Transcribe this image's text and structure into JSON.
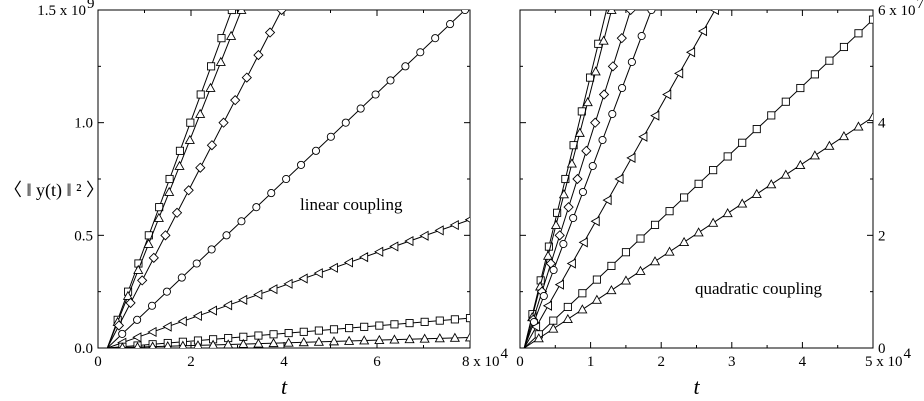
{
  "chart_data": [
    {
      "type": "line",
      "panel": "left",
      "xlabel": "t",
      "ylabel": "〈 ‖ y(t) ‖ ² 〉",
      "xlim": [
        0,
        80000
      ],
      "ylim": [
        0,
        1500000000
      ],
      "x_ticks": [
        0,
        20000,
        40000,
        60000,
        80000
      ],
      "x_tick_labels": [
        "0",
        "2",
        "4",
        "6",
        "8 x 10"
      ],
      "x_tick_exponent": "4",
      "y_ticks": [
        0,
        500000000,
        1000000000,
        1500000000
      ],
      "y_tick_labels": [
        "0.0",
        "0.5",
        "1.0",
        "1.5 x 10"
      ],
      "y_tick_exponent": "9",
      "annotation": "linear coupling",
      "grid": false,
      "series": [
        {
          "marker": "square",
          "slope": 56000,
          "t0": 2000,
          "x_max": 80000
        },
        {
          "marker": "triangle",
          "slope": 52000,
          "t0": 2000,
          "x_max": 80000
        },
        {
          "marker": "diamond",
          "slope": 40000,
          "t0": 2000,
          "x_max": 80000
        },
        {
          "marker": "circle",
          "slope": 19500,
          "t0": 2000,
          "x_max": 80000
        },
        {
          "marker": "triangle-left",
          "slope": 7300,
          "t0": 2000,
          "x_max": 80000
        },
        {
          "marker": "square",
          "slope": 1700,
          "t0": 2000,
          "x_max": 80000
        },
        {
          "marker": "triangle",
          "slope": 600,
          "t0": 2000,
          "x_max": 80000
        }
      ]
    },
    {
      "type": "line",
      "panel": "right",
      "xlabel": "t",
      "xlim": [
        0,
        50000
      ],
      "ylim": [
        0,
        60000000
      ],
      "x_ticks": [
        0,
        10000,
        20000,
        30000,
        40000,
        50000
      ],
      "x_tick_labels": [
        "0",
        "1",
        "2",
        "3",
        "4",
        "5 x 10"
      ],
      "x_tick_exponent": "4",
      "y_ticks": [
        0,
        20000000,
        40000000,
        60000000
      ],
      "y_tick_labels": [
        "0",
        "2",
        "4",
        "6 x 10"
      ],
      "y_tick_exponent": "7",
      "y_axis_side": "right",
      "annotation": "quadratic coupling",
      "grid": false,
      "series": [
        {
          "marker": "square",
          "slope": 5150,
          "t0": 600,
          "x_max": 50000
        },
        {
          "marker": "triangle",
          "slope": 4850,
          "t0": 600,
          "x_max": 50000
        },
        {
          "marker": "diamond",
          "slope": 3980,
          "t0": 600,
          "x_max": 50000
        },
        {
          "marker": "circle",
          "slope": 3330,
          "t0": 600,
          "x_max": 50000
        },
        {
          "marker": "triangle-left",
          "slope": 2220,
          "t0": 600,
          "x_max": 50000
        },
        {
          "marker": "square",
          "slope": 1180,
          "t0": 600,
          "x_max": 50000
        },
        {
          "marker": "triangle",
          "slope": 830,
          "t0": 600,
          "x_max": 50000
        }
      ]
    }
  ]
}
